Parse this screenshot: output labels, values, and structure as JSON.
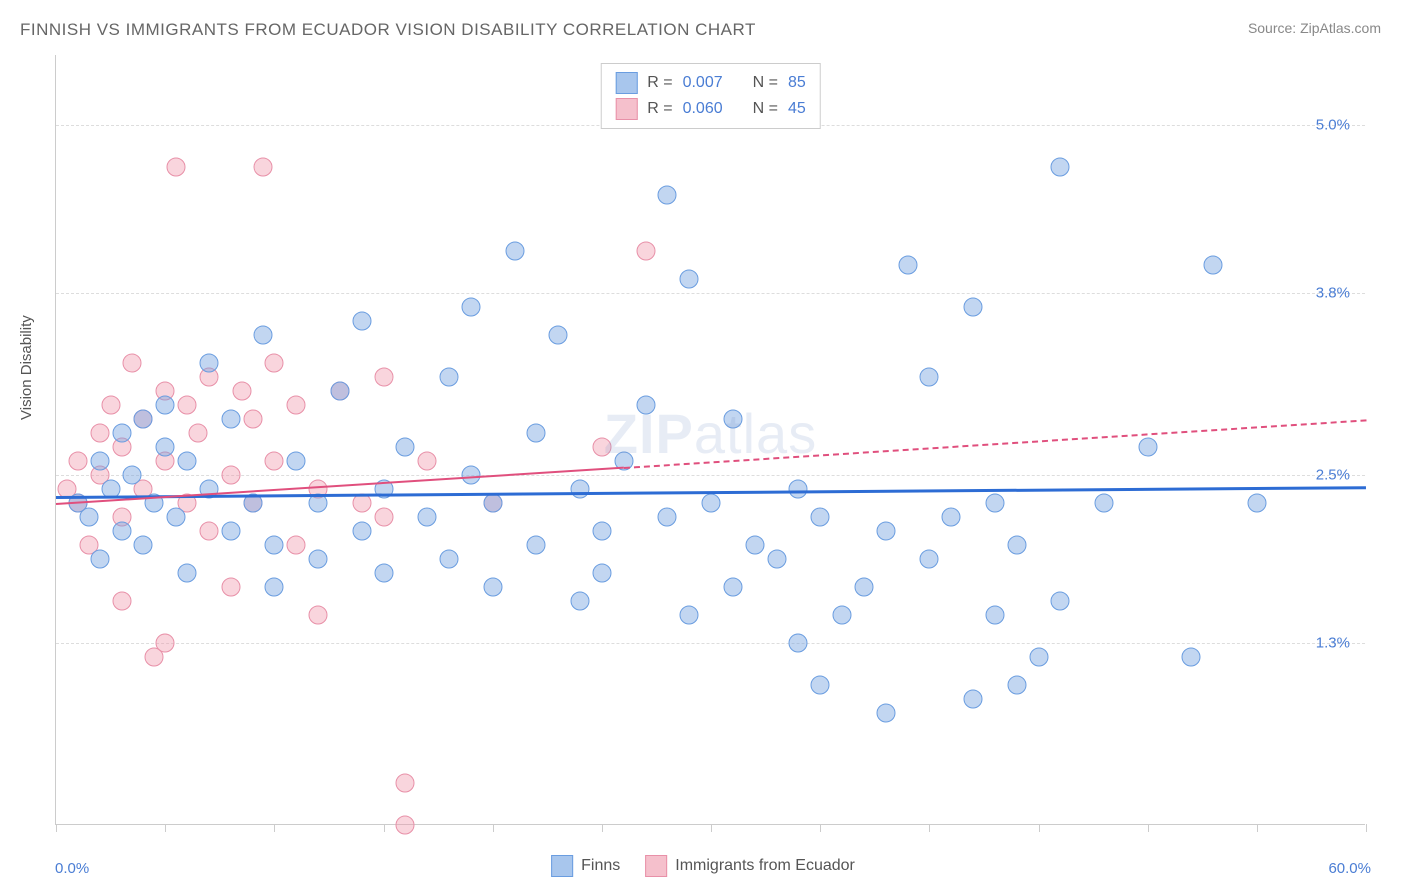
{
  "title": "FINNISH VS IMMIGRANTS FROM ECUADOR VISION DISABILITY CORRELATION CHART",
  "source_label": "Source: ",
  "source_name": "ZipAtlas.com",
  "watermark_a": "ZIP",
  "watermark_b": "atlas",
  "ylabel": "Vision Disability",
  "chart": {
    "type": "scatter",
    "background_color": "#ffffff",
    "grid_color": "#dddddd",
    "axis_color": "#cccccc",
    "xlim": [
      0,
      60
    ],
    "ylim": [
      0,
      5.5
    ],
    "x_min_label": "0.0%",
    "x_max_label": "60.0%",
    "y_ticks": [
      1.3,
      2.5,
      3.8,
      5.0
    ],
    "y_tick_labels": [
      "1.3%",
      "2.5%",
      "3.8%",
      "5.0%"
    ],
    "x_tick_positions": [
      0,
      5,
      10,
      15,
      20,
      25,
      30,
      35,
      40,
      45,
      50,
      55,
      60
    ],
    "series": [
      {
        "name": "Finns",
        "color_fill": "rgba(120,165,225,0.45)",
        "color_stroke": "#6a9de0",
        "swatch_fill": "#a8c6ed",
        "swatch_stroke": "#6a9de0",
        "trend_color": "#2d6cd4",
        "r_label": "R = ",
        "r_value": "0.007",
        "n_label": "N = ",
        "n_value": "85",
        "trend": {
          "y_at_x0": 2.35,
          "y_at_x60": 2.42,
          "solid_until_x": 60
        },
        "points": [
          [
            1,
            2.3
          ],
          [
            1.5,
            2.2
          ],
          [
            2,
            2.6
          ],
          [
            2,
            1.9
          ],
          [
            2.5,
            2.4
          ],
          [
            3,
            2.1
          ],
          [
            3,
            2.8
          ],
          [
            3.5,
            2.5
          ],
          [
            4,
            2.0
          ],
          [
            4,
            2.9
          ],
          [
            4.5,
            2.3
          ],
          [
            5,
            2.7
          ],
          [
            5,
            3.0
          ],
          [
            5.5,
            2.2
          ],
          [
            6,
            2.6
          ],
          [
            6,
            1.8
          ],
          [
            7,
            3.3
          ],
          [
            7,
            2.4
          ],
          [
            8,
            2.1
          ],
          [
            8,
            2.9
          ],
          [
            9,
            2.3
          ],
          [
            9.5,
            3.5
          ],
          [
            10,
            2.0
          ],
          [
            10,
            1.7
          ],
          [
            11,
            2.6
          ],
          [
            12,
            1.9
          ],
          [
            12,
            2.3
          ],
          [
            13,
            3.1
          ],
          [
            14,
            2.1
          ],
          [
            14,
            3.6
          ],
          [
            15,
            2.4
          ],
          [
            15,
            1.8
          ],
          [
            16,
            2.7
          ],
          [
            17,
            2.2
          ],
          [
            18,
            3.2
          ],
          [
            18,
            1.9
          ],
          [
            19,
            2.5
          ],
          [
            19,
            3.7
          ],
          [
            20,
            2.3
          ],
          [
            20,
            1.7
          ],
          [
            21,
            4.1
          ],
          [
            22,
            2.0
          ],
          [
            22,
            2.8
          ],
          [
            23,
            3.5
          ],
          [
            24,
            2.4
          ],
          [
            24,
            1.6
          ],
          [
            25,
            2.1
          ],
          [
            25,
            1.8
          ],
          [
            26,
            2.6
          ],
          [
            27,
            3.0
          ],
          [
            28,
            2.2
          ],
          [
            28,
            4.5
          ],
          [
            29,
            3.9
          ],
          [
            29,
            1.5
          ],
          [
            30,
            2.3
          ],
          [
            31,
            1.7
          ],
          [
            31,
            2.9
          ],
          [
            32,
            2.0
          ],
          [
            33,
            1.9
          ],
          [
            34,
            2.4
          ],
          [
            34,
            1.3
          ],
          [
            35,
            2.2
          ],
          [
            35,
            1.0
          ],
          [
            36,
            1.5
          ],
          [
            37,
            1.7
          ],
          [
            38,
            2.1
          ],
          [
            38,
            0.8
          ],
          [
            39,
            4.0
          ],
          [
            40,
            1.9
          ],
          [
            40,
            3.2
          ],
          [
            41,
            2.2
          ],
          [
            42,
            3.7
          ],
          [
            42,
            0.9
          ],
          [
            43,
            2.3
          ],
          [
            43,
            1.5
          ],
          [
            44,
            1.0
          ],
          [
            44,
            2.0
          ],
          [
            45,
            1.2
          ],
          [
            46,
            4.7
          ],
          [
            46,
            1.6
          ],
          [
            48,
            2.3
          ],
          [
            50,
            2.7
          ],
          [
            52,
            1.2
          ],
          [
            53,
            4.0
          ],
          [
            55,
            2.3
          ]
        ]
      },
      {
        "name": "Immigrants from Ecuador",
        "color_fill": "rgba(240,150,170,0.40)",
        "color_stroke": "#e890a8",
        "swatch_fill": "#f5c0cc",
        "swatch_stroke": "#e890a8",
        "trend_color": "#e04f7d",
        "r_label": "R = ",
        "r_value": "0.060",
        "n_label": "N = ",
        "n_value": "45",
        "trend": {
          "y_at_x0": 2.3,
          "y_at_x60": 2.9,
          "solid_until_x": 26
        },
        "points": [
          [
            0.5,
            2.4
          ],
          [
            1,
            2.3
          ],
          [
            1,
            2.6
          ],
          [
            1.5,
            2.0
          ],
          [
            2,
            2.5
          ],
          [
            2,
            2.8
          ],
          [
            2.5,
            3.0
          ],
          [
            3,
            2.2
          ],
          [
            3,
            1.6
          ],
          [
            3,
            2.7
          ],
          [
            3.5,
            3.3
          ],
          [
            4,
            2.4
          ],
          [
            4,
            2.9
          ],
          [
            4.5,
            1.2
          ],
          [
            5,
            2.6
          ],
          [
            5,
            3.1
          ],
          [
            5,
            1.3
          ],
          [
            5.5,
            4.7
          ],
          [
            6,
            2.3
          ],
          [
            6,
            3.0
          ],
          [
            6.5,
            2.8
          ],
          [
            7,
            2.1
          ],
          [
            7,
            3.2
          ],
          [
            8,
            1.7
          ],
          [
            8,
            2.5
          ],
          [
            8.5,
            3.1
          ],
          [
            9,
            2.3
          ],
          [
            9,
            2.9
          ],
          [
            9.5,
            4.7
          ],
          [
            10,
            2.6
          ],
          [
            10,
            3.3
          ],
          [
            11,
            2.0
          ],
          [
            11,
            3.0
          ],
          [
            12,
            2.4
          ],
          [
            12,
            1.5
          ],
          [
            13,
            3.1
          ],
          [
            14,
            2.3
          ],
          [
            15,
            2.2
          ],
          [
            15,
            3.2
          ],
          [
            16,
            0.3
          ],
          [
            16,
            0.0
          ],
          [
            17,
            2.6
          ],
          [
            20,
            2.3
          ],
          [
            25,
            2.7
          ],
          [
            27,
            4.1
          ]
        ]
      }
    ]
  }
}
